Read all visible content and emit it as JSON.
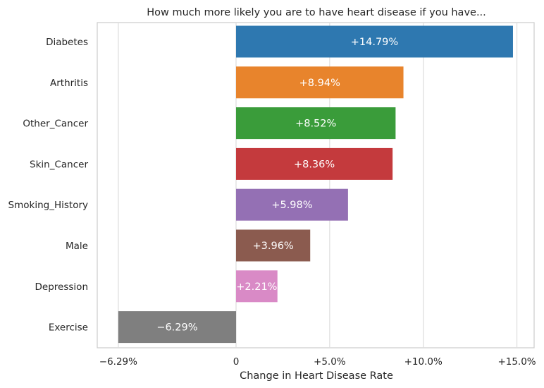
{
  "chart_data": {
    "type": "bar",
    "orientation": "horizontal",
    "title": "How much more likely you are to have heart disease if you have...",
    "xlabel": "Change in Heart Disease Rate",
    "ylabel": "",
    "xlim": [
      -6.3,
      15.0
    ],
    "grid": true,
    "categories": [
      "Diabetes",
      "Arthritis",
      "Other_Cancer",
      "Skin_Cancer",
      "Smoking_History",
      "Male",
      "Depression",
      "Exercise"
    ],
    "values": [
      14.79,
      8.94,
      8.52,
      8.36,
      5.98,
      3.96,
      2.21,
      -6.29
    ],
    "data_labels": [
      "+14.79%",
      "+8.94%",
      "+8.52%",
      "+8.36%",
      "+5.98%",
      "+3.96%",
      "+2.21%",
      "−6.29%"
    ],
    "colors": [
      "#2e78b0",
      "#e8842c",
      "#3a9c3a",
      "#c43a3d",
      "#9470b4",
      "#8b5b4f",
      "#d98ac6",
      "#7f7f7f"
    ],
    "x_ticks": [
      -6.29,
      0,
      5,
      10,
      15
    ],
    "x_tick_labels": [
      "−6.29%",
      "0",
      "+5.0%",
      "+10.0%",
      "+15.0%"
    ]
  }
}
